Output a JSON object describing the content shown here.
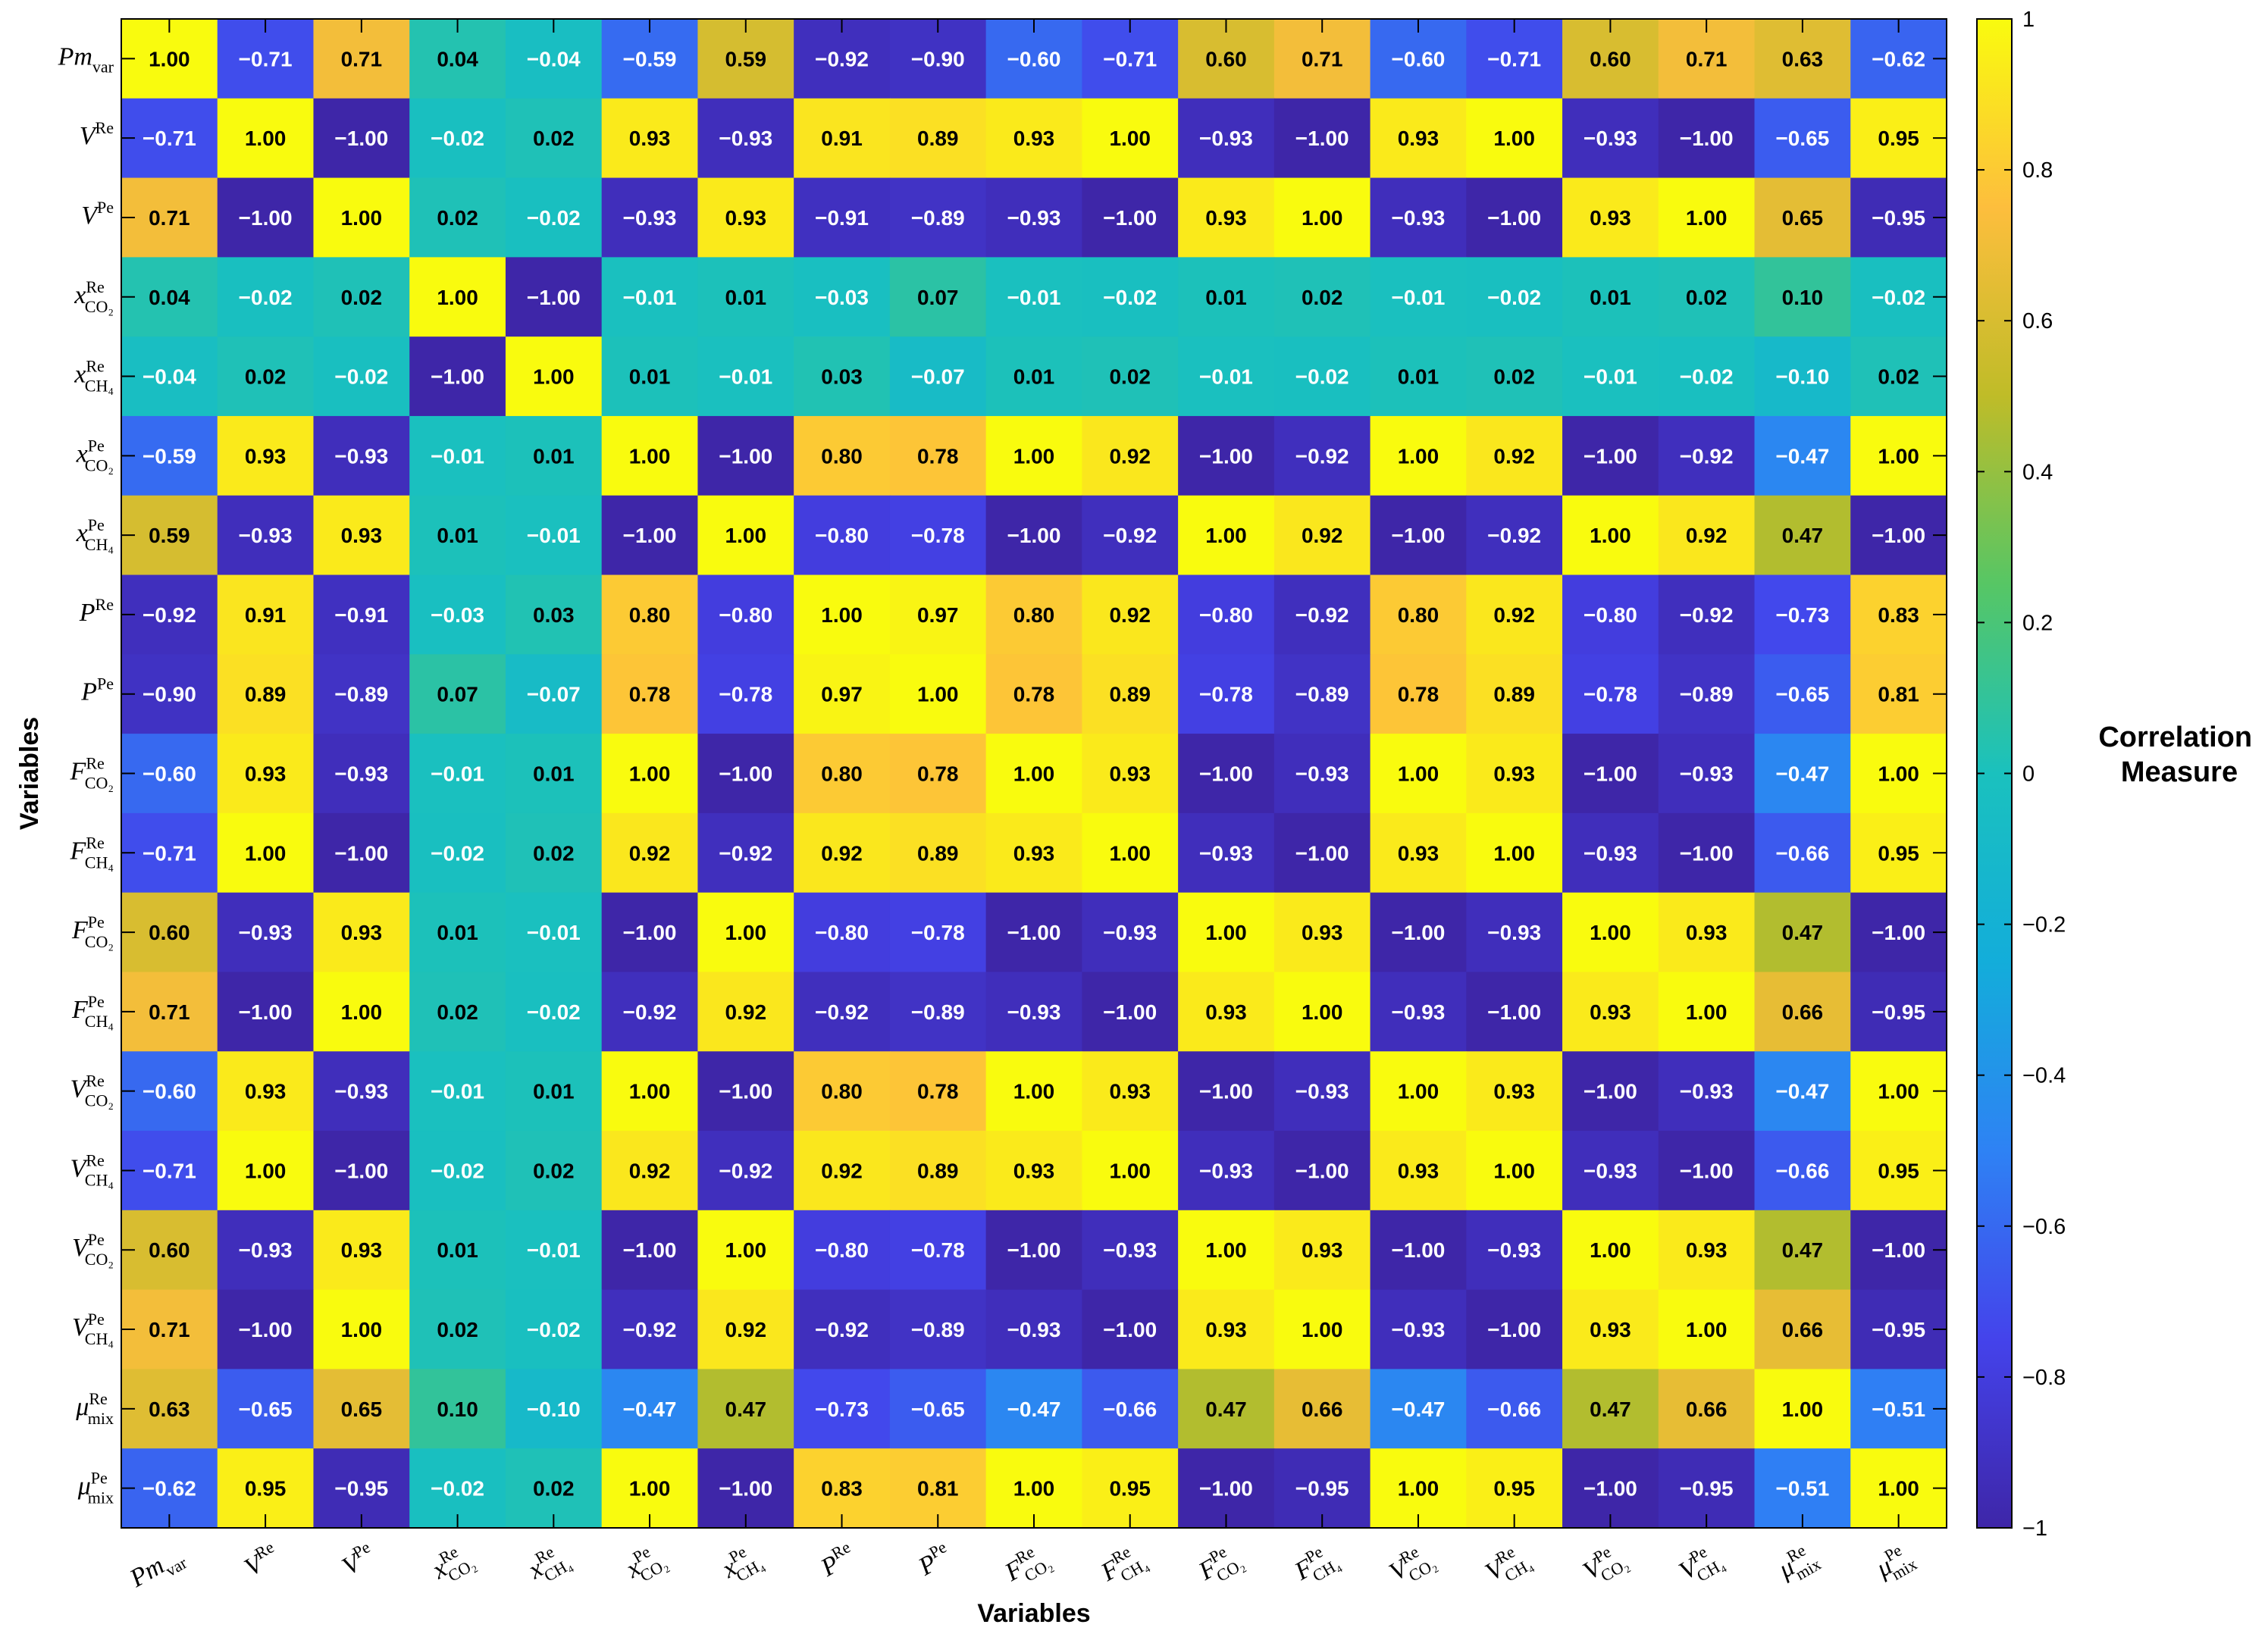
{
  "chart_data": {
    "type": "heatmap",
    "xlabel": "Variables",
    "ylabel": "Variables",
    "colorbar": {
      "title": [
        "Correlation",
        "Measure"
      ],
      "range": [
        -1,
        1
      ],
      "ticks": [
        "1",
        "0.8",
        "0.6",
        "0.4",
        "0.2",
        "0",
        "−0.2",
        "−0.4",
        "−0.6",
        "−0.8",
        "−1"
      ],
      "tick_values": [
        1,
        0.8,
        0.6,
        0.4,
        0.2,
        0,
        -0.2,
        -0.4,
        -0.6,
        -0.8,
        -1
      ]
    },
    "colormap": "parula",
    "variables": [
      {
        "base": "Pm",
        "sub": "var",
        "sup": ""
      },
      {
        "base": "V",
        "sub": "",
        "sup": "Re"
      },
      {
        "base": "V",
        "sub": "",
        "sup": "Pe"
      },
      {
        "base": "x",
        "sub": "CO₂",
        "sup": "Re"
      },
      {
        "base": "x",
        "sub": "CH₄",
        "sup": "Re"
      },
      {
        "base": "x",
        "sub": "CO₂",
        "sup": "Pe"
      },
      {
        "base": "x",
        "sub": "CH₄",
        "sup": "Pe"
      },
      {
        "base": "P",
        "sub": "",
        "sup": "Re"
      },
      {
        "base": "P",
        "sub": "",
        "sup": "Pe"
      },
      {
        "base": "F",
        "sub": "CO₂",
        "sup": "Re"
      },
      {
        "base": "F",
        "sub": "CH₄",
        "sup": "Re"
      },
      {
        "base": "F",
        "sub": "CO₂",
        "sup": "Pe"
      },
      {
        "base": "F",
        "sub": "CH₄",
        "sup": "Pe"
      },
      {
        "base": "V",
        "sub": "CO₂",
        "sup": "Re"
      },
      {
        "base": "V",
        "sub": "CH₄",
        "sup": "Re"
      },
      {
        "base": "V",
        "sub": "CO₂",
        "sup": "Pe"
      },
      {
        "base": "V",
        "sub": "CH₄",
        "sup": "Pe"
      },
      {
        "base": "μ",
        "sub": "mix",
        "sup": "Re"
      },
      {
        "base": "μ",
        "sub": "mix",
        "sup": "Pe"
      }
    ],
    "values": [
      [
        1.0,
        -0.71,
        0.71,
        0.04,
        -0.04,
        -0.59,
        0.59,
        -0.92,
        -0.9,
        -0.6,
        -0.71,
        0.6,
        0.71,
        -0.6,
        -0.71,
        0.6,
        0.71,
        0.63,
        -0.62
      ],
      [
        -0.71,
        1.0,
        -1.0,
        -0.02,
        0.02,
        0.93,
        -0.93,
        0.91,
        0.89,
        0.93,
        1.0,
        -0.93,
        -1.0,
        0.93,
        1.0,
        -0.93,
        -1.0,
        -0.65,
        0.95
      ],
      [
        0.71,
        -1.0,
        1.0,
        0.02,
        -0.02,
        -0.93,
        0.93,
        -0.91,
        -0.89,
        -0.93,
        -1.0,
        0.93,
        1.0,
        -0.93,
        -1.0,
        0.93,
        1.0,
        0.65,
        -0.95
      ],
      [
        0.04,
        -0.02,
        0.02,
        1.0,
        -1.0,
        -0.01,
        0.01,
        -0.03,
        0.07,
        -0.01,
        -0.02,
        0.01,
        0.02,
        -0.01,
        -0.02,
        0.01,
        0.02,
        0.1,
        -0.02
      ],
      [
        -0.04,
        0.02,
        -0.02,
        -1.0,
        1.0,
        0.01,
        -0.01,
        0.03,
        -0.07,
        0.01,
        0.02,
        -0.01,
        -0.02,
        0.01,
        0.02,
        -0.01,
        -0.02,
        -0.1,
        0.02
      ],
      [
        -0.59,
        0.93,
        -0.93,
        -0.01,
        0.01,
        1.0,
        -1.0,
        0.8,
        0.78,
        1.0,
        0.92,
        -1.0,
        -0.92,
        1.0,
        0.92,
        -1.0,
        -0.92,
        -0.47,
        1.0
      ],
      [
        0.59,
        -0.93,
        0.93,
        0.01,
        -0.01,
        -1.0,
        1.0,
        -0.8,
        -0.78,
        -1.0,
        -0.92,
        1.0,
        0.92,
        -1.0,
        -0.92,
        1.0,
        0.92,
        0.47,
        -1.0
      ],
      [
        -0.92,
        0.91,
        -0.91,
        -0.03,
        0.03,
        0.8,
        -0.8,
        1.0,
        0.97,
        0.8,
        0.92,
        -0.8,
        -0.92,
        0.8,
        0.92,
        -0.8,
        -0.92,
        -0.73,
        0.83
      ],
      [
        -0.9,
        0.89,
        -0.89,
        0.07,
        -0.07,
        0.78,
        -0.78,
        0.97,
        1.0,
        0.78,
        0.89,
        -0.78,
        -0.89,
        0.78,
        0.89,
        -0.78,
        -0.89,
        -0.65,
        0.81
      ],
      [
        -0.6,
        0.93,
        -0.93,
        -0.01,
        0.01,
        1.0,
        -1.0,
        0.8,
        0.78,
        1.0,
        0.93,
        -1.0,
        -0.93,
        1.0,
        0.93,
        -1.0,
        -0.93,
        -0.47,
        1.0
      ],
      [
        -0.71,
        1.0,
        -1.0,
        -0.02,
        0.02,
        0.92,
        -0.92,
        0.92,
        0.89,
        0.93,
        1.0,
        -0.93,
        -1.0,
        0.93,
        1.0,
        -0.93,
        -1.0,
        -0.66,
        0.95
      ],
      [
        0.6,
        -0.93,
        0.93,
        0.01,
        -0.01,
        -1.0,
        1.0,
        -0.8,
        -0.78,
        -1.0,
        -0.93,
        1.0,
        0.93,
        -1.0,
        -0.93,
        1.0,
        0.93,
        0.47,
        -1.0
      ],
      [
        0.71,
        -1.0,
        1.0,
        0.02,
        -0.02,
        -0.92,
        0.92,
        -0.92,
        -0.89,
        -0.93,
        -1.0,
        0.93,
        1.0,
        -0.93,
        -1.0,
        0.93,
        1.0,
        0.66,
        -0.95
      ],
      [
        -0.6,
        0.93,
        -0.93,
        -0.01,
        0.01,
        1.0,
        -1.0,
        0.8,
        0.78,
        1.0,
        0.93,
        -1.0,
        -0.93,
        1.0,
        0.93,
        -1.0,
        -0.93,
        -0.47,
        1.0
      ],
      [
        -0.71,
        1.0,
        -1.0,
        -0.02,
        0.02,
        0.92,
        -0.92,
        0.92,
        0.89,
        0.93,
        1.0,
        -0.93,
        -1.0,
        0.93,
        1.0,
        -0.93,
        -1.0,
        -0.66,
        0.95
      ],
      [
        0.6,
        -0.93,
        0.93,
        0.01,
        -0.01,
        -1.0,
        1.0,
        -0.8,
        -0.78,
        -1.0,
        -0.93,
        1.0,
        0.93,
        -1.0,
        -0.93,
        1.0,
        0.93,
        0.47,
        -1.0
      ],
      [
        0.71,
        -1.0,
        1.0,
        0.02,
        -0.02,
        -0.92,
        0.92,
        -0.92,
        -0.89,
        -0.93,
        -1.0,
        0.93,
        1.0,
        -0.93,
        -1.0,
        0.93,
        1.0,
        0.66,
        -0.95
      ],
      [
        0.63,
        -0.65,
        0.65,
        0.1,
        -0.1,
        -0.47,
        0.47,
        -0.73,
        -0.65,
        -0.47,
        -0.66,
        0.47,
        0.66,
        -0.47,
        -0.66,
        0.47,
        0.66,
        1.0,
        -0.51
      ],
      [
        -0.62,
        0.95,
        -0.95,
        -0.02,
        0.02,
        1.0,
        -1.0,
        0.83,
        0.81,
        1.0,
        0.95,
        -1.0,
        -0.95,
        1.0,
        0.95,
        -1.0,
        -0.95,
        -0.51,
        1.0
      ]
    ]
  }
}
